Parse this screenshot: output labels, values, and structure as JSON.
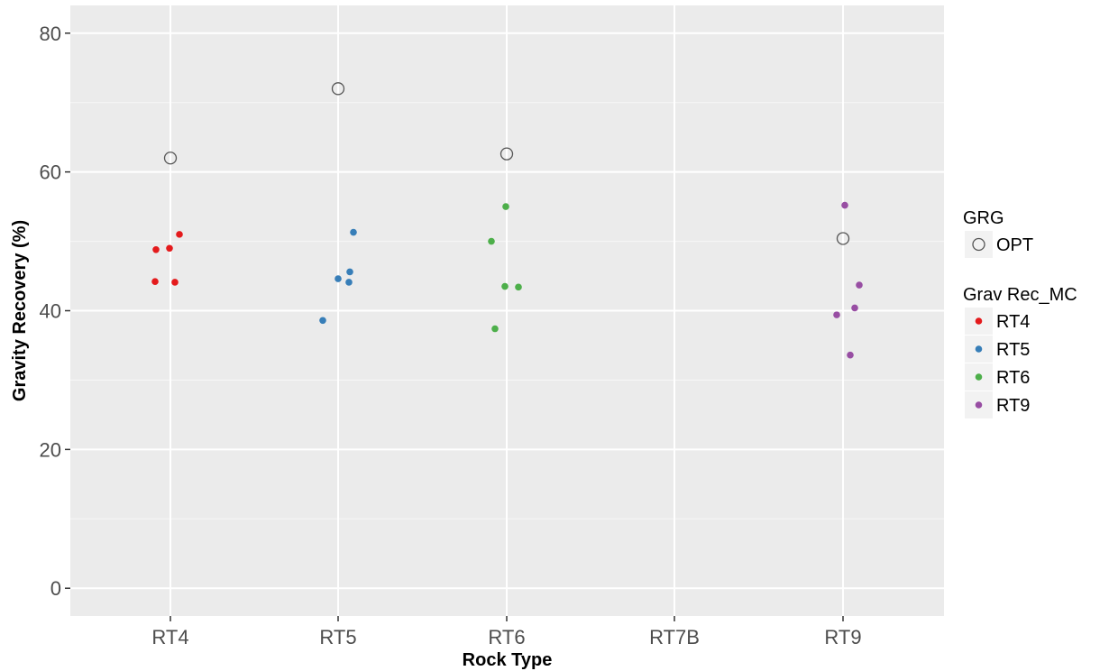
{
  "chart_data": {
    "type": "scatter",
    "title": "",
    "xlabel": "Rock Type",
    "ylabel": "Gravity Recovery (%)",
    "categories": [
      "RT4",
      "RT5",
      "RT6",
      "RT7B",
      "RT9"
    ],
    "ylim": [
      -4,
      84
    ],
    "yticks": [
      0,
      20,
      40,
      60,
      80
    ],
    "yticks_labels": [
      "0",
      "20",
      "40",
      "60",
      "80"
    ],
    "grid": true,
    "colors": {
      "panel_background": "#ebebeb",
      "grid_major": "#ffffff",
      "grid_minor": "#f7f7f7",
      "opt_stroke": "#555555",
      "legend_key_background": "#f2f2f2"
    },
    "series": [
      {
        "name": "OPT",
        "group": "GRG",
        "marker": "open-circle",
        "color": "#555555",
        "points": [
          {
            "x": "RT4",
            "y": 62.0
          },
          {
            "x": "RT5",
            "y": 72.0
          },
          {
            "x": "RT6",
            "y": 62.6
          },
          {
            "x": "RT9",
            "y": 50.4
          }
        ]
      },
      {
        "name": "RT4",
        "group": "Grav Rec_MC",
        "marker": "dot",
        "color": "#e41a1c",
        "points": [
          {
            "x": "RT4",
            "y": 48.8
          },
          {
            "x": "RT4",
            "y": 49.0
          },
          {
            "x": "RT4",
            "y": 51.0
          },
          {
            "x": "RT4",
            "y": 44.2
          },
          {
            "x": "RT4",
            "y": 44.1
          }
        ]
      },
      {
        "name": "RT5",
        "group": "Grav Rec_MC",
        "marker": "dot",
        "color": "#377eb8",
        "points": [
          {
            "x": "RT5",
            "y": 51.3
          },
          {
            "x": "RT5",
            "y": 45.6
          },
          {
            "x": "RT5",
            "y": 44.6
          },
          {
            "x": "RT5",
            "y": 44.1
          },
          {
            "x": "RT5",
            "y": 38.6
          }
        ]
      },
      {
        "name": "RT6",
        "group": "Grav Rec_MC",
        "marker": "dot",
        "color": "#4daf4a",
        "points": [
          {
            "x": "RT6",
            "y": 55.0
          },
          {
            "x": "RT6",
            "y": 50.0
          },
          {
            "x": "RT6",
            "y": 43.5
          },
          {
            "x": "RT6",
            "y": 43.4
          },
          {
            "x": "RT6",
            "y": 37.4
          }
        ]
      },
      {
        "name": "RT9",
        "group": "Grav Rec_MC",
        "marker": "dot",
        "color": "#984ea3",
        "points": [
          {
            "x": "RT9",
            "y": 55.2
          },
          {
            "x": "RT9",
            "y": 43.7
          },
          {
            "x": "RT9",
            "y": 40.4
          },
          {
            "x": "RT9",
            "y": 39.4
          },
          {
            "x": "RT9",
            "y": 33.6
          }
        ]
      }
    ],
    "legends": [
      {
        "title": "GRG",
        "items": [
          {
            "label": "OPT",
            "marker": "open-circle",
            "color": "#555555"
          }
        ]
      },
      {
        "title": "Grav Rec_MC",
        "items": [
          {
            "label": "RT4",
            "marker": "dot",
            "color": "#e41a1c"
          },
          {
            "label": "RT5",
            "marker": "dot",
            "color": "#377eb8"
          },
          {
            "label": "RT6",
            "marker": "dot",
            "color": "#4daf4a"
          },
          {
            "label": "RT9",
            "marker": "dot",
            "color": "#984ea3"
          }
        ]
      }
    ],
    "legend_position": "right"
  }
}
